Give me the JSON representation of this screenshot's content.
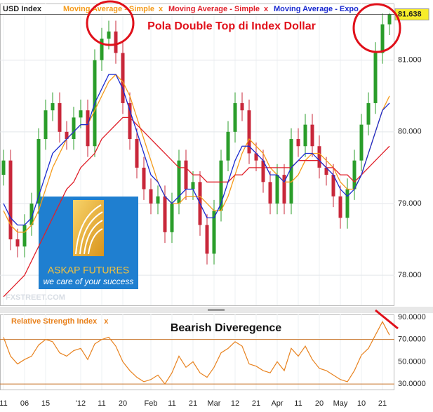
{
  "chart_data": [
    {
      "type": "candlestick",
      "title": "USD Index",
      "annotation": "Pola Double Top di Index Dollar",
      "legend_close": "x",
      "categories": [
        "11",
        null,
        null,
        "06",
        null,
        null,
        "15",
        null,
        null,
        null,
        null,
        "'12",
        null,
        null,
        "11",
        null,
        null,
        "20",
        null,
        null,
        null,
        "Feb",
        null,
        null,
        "11",
        null,
        null,
        "21",
        null,
        null,
        "Mar",
        null,
        null,
        "12",
        null,
        null,
        "21",
        null,
        null,
        "Apr",
        null,
        null,
        "11",
        null,
        null,
        "20",
        null,
        null,
        "May",
        null,
        null,
        "10",
        null,
        null,
        "21",
        null
      ],
      "open": [
        79.4,
        79.6,
        78.5,
        78.4,
        78.7,
        79.0,
        79.9,
        80.3,
        80.4,
        80.0,
        79.9,
        80.2,
        80.3,
        79.8,
        81.0,
        81.3,
        81.4,
        81.1,
        80.4,
        79.9,
        79.5,
        79.2,
        79.0,
        79.1,
        78.6,
        79.0,
        79.6,
        79.2,
        79.3,
        78.7,
        78.3,
        78.9,
        79.6,
        80.0,
        80.4,
        80.3,
        79.7,
        79.6,
        79.3,
        79.0,
        79.4,
        79.0,
        79.9,
        79.8,
        80.1,
        79.8,
        79.5,
        79.4,
        79.1,
        78.8,
        79.2,
        79.6,
        80.1,
        80.4,
        81.1,
        81.5
      ],
      "high": [
        79.75,
        79.75,
        78.65,
        78.85,
        79.15,
        80.05,
        80.45,
        80.55,
        80.55,
        80.15,
        80.35,
        80.45,
        80.45,
        81.15,
        81.45,
        81.55,
        81.55,
        81.25,
        80.55,
        80.05,
        79.65,
        79.35,
        79.25,
        79.25,
        79.15,
        79.75,
        79.75,
        79.45,
        79.45,
        78.85,
        79.05,
        79.75,
        80.15,
        80.55,
        80.55,
        80.45,
        79.85,
        79.75,
        79.45,
        79.55,
        79.55,
        80.05,
        80.05,
        80.25,
        80.25,
        79.95,
        79.65,
        79.55,
        79.25,
        79.35,
        79.75,
        80.25,
        80.55,
        81.25,
        81.65,
        81.75
      ],
      "low": [
        79.25,
        78.35,
        78.25,
        78.25,
        78.55,
        78.85,
        79.75,
        80.15,
        79.85,
        79.75,
        79.75,
        80.05,
        79.65,
        79.65,
        80.85,
        81.15,
        80.95,
        80.25,
        79.75,
        79.35,
        79.05,
        78.85,
        78.85,
        78.45,
        78.45,
        78.85,
        79.05,
        79.05,
        78.55,
        78.15,
        78.15,
        78.75,
        79.45,
        79.85,
        80.15,
        79.55,
        79.45,
        79.15,
        78.85,
        78.85,
        78.85,
        78.85,
        79.65,
        79.65,
        79.65,
        79.35,
        79.25,
        78.95,
        78.65,
        78.65,
        79.05,
        79.45,
        79.95,
        80.25,
        80.95,
        81.35
      ],
      "close": [
        79.6,
        78.5,
        78.4,
        78.7,
        79.0,
        79.9,
        80.3,
        80.4,
        80.0,
        79.9,
        80.2,
        80.3,
        79.8,
        81.0,
        81.3,
        81.4,
        81.1,
        80.4,
        79.9,
        79.5,
        79.2,
        79.0,
        79.1,
        78.6,
        79.0,
        79.6,
        79.2,
        79.3,
        78.7,
        78.3,
        78.9,
        79.6,
        80.0,
        80.4,
        80.3,
        79.7,
        79.6,
        79.3,
        79.0,
        79.4,
        79.0,
        79.9,
        79.8,
        80.1,
        79.8,
        79.5,
        79.4,
        79.1,
        78.8,
        79.2,
        79.6,
        80.1,
        80.4,
        81.1,
        81.5,
        81.638
      ],
      "up_color": "#2a9d2a",
      "down_color": "#c8273a",
      "series": [
        {
          "name": "Moving Average - Simple",
          "color": "#f59b1a",
          "values": [
            78.9,
            78.7,
            78.6,
            78.6,
            78.7,
            78.9,
            79.2,
            79.5,
            79.7,
            79.9,
            80.0,
            80.1,
            80.1,
            80.3,
            80.5,
            80.7,
            80.8,
            80.7,
            80.5,
            80.2,
            79.9,
            79.6,
            79.3,
            79.1,
            79.0,
            79.0,
            79.1,
            79.1,
            79.1,
            79.0,
            78.9,
            78.9,
            79.1,
            79.4,
            79.7,
            79.9,
            79.8,
            79.7,
            79.5,
            79.4,
            79.3,
            79.3,
            79.4,
            79.6,
            79.7,
            79.7,
            79.6,
            79.5,
            79.3,
            79.2,
            79.2,
            79.4,
            79.7,
            80.0,
            80.3,
            80.5
          ]
        },
        {
          "name": "Moving Average - Simple",
          "color": "#e0202a",
          "values": [
            77.7,
            77.8,
            77.9,
            78.0,
            78.2,
            78.4,
            78.6,
            78.8,
            79.0,
            79.2,
            79.3,
            79.5,
            79.6,
            79.7,
            79.9,
            80.0,
            80.1,
            80.2,
            80.2,
            80.1,
            80.0,
            79.9,
            79.8,
            79.7,
            79.6,
            79.5,
            79.5,
            79.4,
            79.4,
            79.3,
            79.3,
            79.3,
            79.3,
            79.4,
            79.4,
            79.5,
            79.5,
            79.5,
            79.5,
            79.5,
            79.5,
            79.5,
            79.6,
            79.6,
            79.6,
            79.6,
            79.5,
            79.5,
            79.4,
            79.4,
            79.3,
            79.4,
            79.5,
            79.6,
            79.7,
            79.8
          ]
        },
        {
          "name": "Moving Average - Expo",
          "color": "#1a2ad0",
          "values": [
            79.0,
            78.8,
            78.7,
            78.7,
            78.8,
            79.1,
            79.4,
            79.7,
            79.8,
            79.9,
            80.0,
            80.1,
            80.1,
            80.4,
            80.6,
            80.8,
            80.8,
            80.6,
            80.3,
            80.0,
            79.7,
            79.4,
            79.3,
            79.1,
            79.0,
            79.1,
            79.2,
            79.2,
            79.0,
            78.8,
            78.8,
            79.0,
            79.3,
            79.6,
            79.8,
            79.8,
            79.7,
            79.6,
            79.4,
            79.4,
            79.3,
            79.5,
            79.6,
            79.7,
            79.7,
            79.6,
            79.5,
            79.4,
            79.2,
            79.1,
            79.2,
            79.4,
            79.7,
            80.0,
            80.3,
            80.4
          ]
        }
      ],
      "ylim": [
        77.58,
        81.79
      ],
      "yticks": [
        {
          "value": 78,
          "label": "78.000"
        },
        {
          "value": 79,
          "label": "79.000"
        },
        {
          "value": 80,
          "label": "80.000"
        },
        {
          "value": 81,
          "label": "81.000"
        }
      ],
      "current_price": {
        "value": 81.638,
        "label": "81.638"
      },
      "grid": true
    },
    {
      "type": "line",
      "title": "Relative Strength Index",
      "legend_close": "x",
      "annotation": "Bearish Diveregence",
      "color": "#e8821e",
      "values": [
        72,
        55,
        48,
        52,
        55,
        65,
        70,
        68,
        58,
        55,
        60,
        62,
        52,
        66,
        70,
        72,
        64,
        50,
        42,
        36,
        32,
        34,
        38,
        30,
        40,
        55,
        45,
        50,
        40,
        36,
        45,
        58,
        62,
        68,
        64,
        48,
        46,
        42,
        40,
        50,
        42,
        62,
        55,
        64,
        52,
        44,
        42,
        38,
        34,
        32,
        42,
        56,
        62,
        74,
        86,
        74
      ],
      "levels": [
        70,
        30
      ],
      "ylim": [
        25,
        92.5
      ],
      "yticks": [
        {
          "value": 30,
          "label": "30.0000"
        },
        {
          "value": 50,
          "label": "50.0000"
        },
        {
          "value": 70,
          "label": "70.0000"
        },
        {
          "value": 90,
          "label": "90.0000"
        }
      ]
    }
  ],
  "branding": {
    "company": "ASKAP FUTURES",
    "tagline": "we care of your success",
    "watermark": "FXSTREET.COM"
  }
}
